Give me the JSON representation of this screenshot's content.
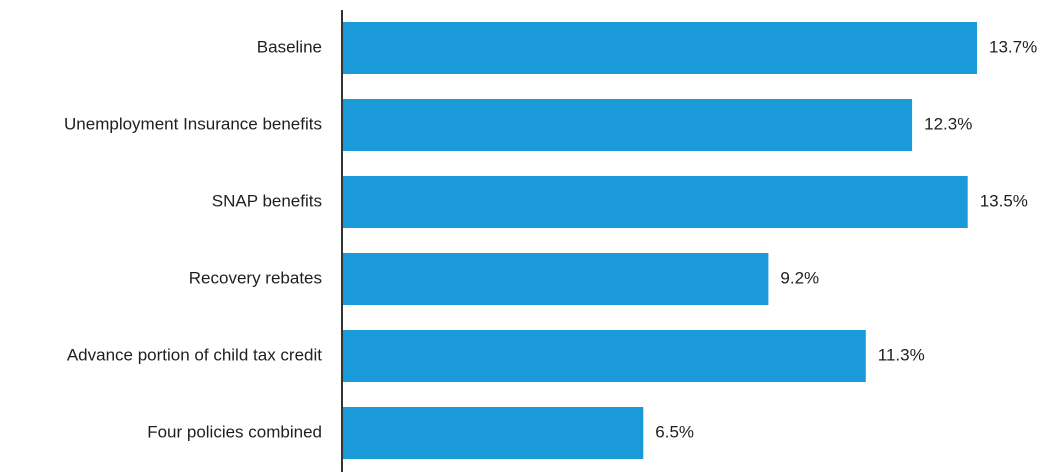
{
  "chart_data": {
    "type": "bar",
    "orientation": "horizontal",
    "categories": [
      "Baseline",
      "Unemployment Insurance benefits",
      "SNAP benefits",
      "Recovery rebates",
      "Advance portion of child tax credit",
      "Four policies combined"
    ],
    "values": [
      13.7,
      12.3,
      13.5,
      9.2,
      11.3,
      6.5
    ],
    "value_labels": [
      "13.7%",
      "12.3%",
      "13.5%",
      "9.2%",
      "11.3%",
      "6.5%"
    ],
    "xlim": [
      0,
      13.7
    ],
    "grid": false,
    "legend": "none",
    "colors": {
      "bar": "#1a9ad9",
      "axis": "#333333",
      "text": "#1f1f1f"
    }
  }
}
